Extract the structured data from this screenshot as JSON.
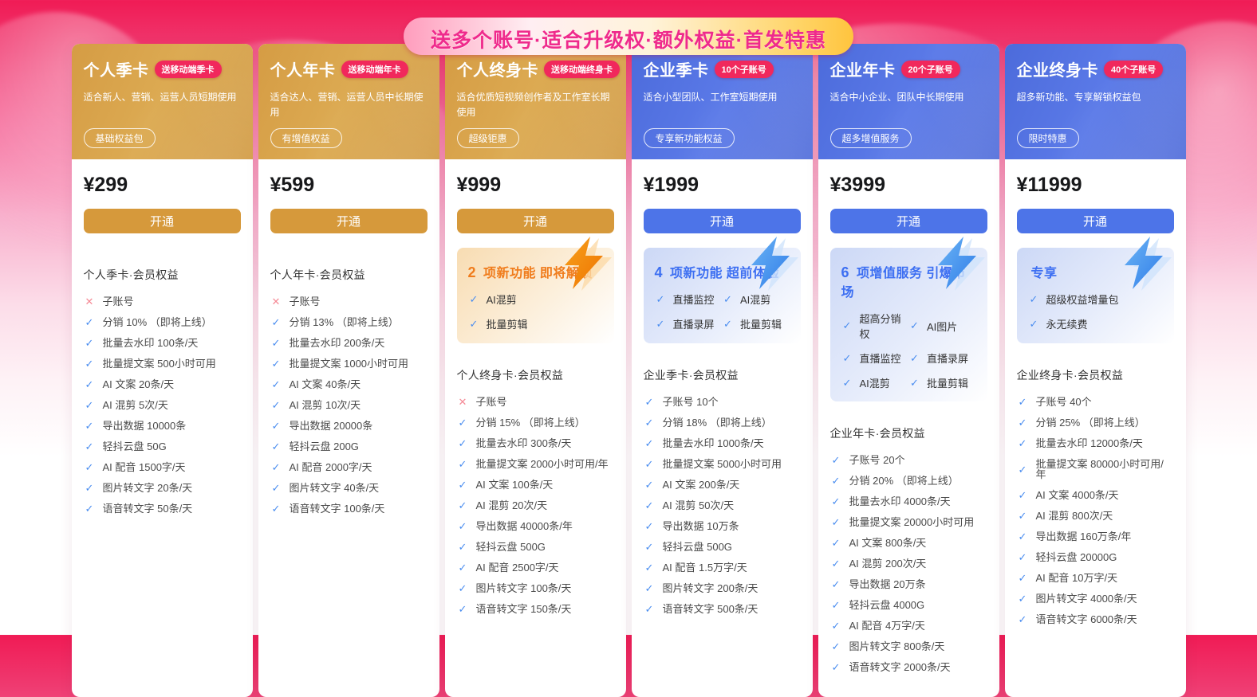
{
  "banner": {
    "text": "送多个账号·适合升级权·额外权益·首发特惠",
    "note": "partially visible, clipped at top of screen"
  },
  "colors": {
    "background_top": "#f01b55",
    "gold_header": "#d7a04b",
    "blue_header": "#4f6edc",
    "badge_red": "#f1285c",
    "gold_button": "#d6993b",
    "blue_button": "#4d74e8",
    "check_blue": "#4a8df0",
    "cross_red": "#f58a96",
    "highlight_orange_title": "#f07c1c",
    "highlight_blue_title": "#3d6ff2"
  },
  "cards": [
    {
      "theme": "gold",
      "title": "个人季卡",
      "badge": "送移动端季卡",
      "desc": "适合新人、营销、运营人员短期使用",
      "tag": "基础权益包",
      "price": "¥299",
      "button": "开通",
      "highlight": null,
      "features_title": "个人季卡·会员权益",
      "features": [
        {
          "ok": false,
          "text": "子账号"
        },
        {
          "ok": true,
          "text": "分销 10% （即将上线）"
        },
        {
          "ok": true,
          "text": "批量去水印 100条/天"
        },
        {
          "ok": true,
          "text": "批量提文案 500小时可用"
        },
        {
          "ok": true,
          "text": "AI 文案 20条/天"
        },
        {
          "ok": true,
          "text": "AI 混剪 5次/天"
        },
        {
          "ok": true,
          "text": "导出数据 10000条"
        },
        {
          "ok": true,
          "text": "轻抖云盘 50G"
        },
        {
          "ok": true,
          "text": "AI 配音 1500字/天"
        },
        {
          "ok": true,
          "text": "图片转文字 20条/天"
        },
        {
          "ok": true,
          "text": "语音转文字 50条/天"
        }
      ]
    },
    {
      "theme": "gold",
      "title": "个人年卡",
      "badge": "送移动端年卡",
      "desc": "适合达人、营销、运营人员中长期使用",
      "tag": "有增值权益",
      "price": "¥599",
      "button": "开通",
      "highlight": null,
      "features_title": "个人年卡·会员权益",
      "features": [
        {
          "ok": false,
          "text": "子账号"
        },
        {
          "ok": true,
          "text": "分销 13% （即将上线）"
        },
        {
          "ok": true,
          "text": "批量去水印 200条/天"
        },
        {
          "ok": true,
          "text": "批量提文案 1000小时可用"
        },
        {
          "ok": true,
          "text": "AI 文案 40条/天"
        },
        {
          "ok": true,
          "text": "AI 混剪 10次/天"
        },
        {
          "ok": true,
          "text": "导出数据 20000条"
        },
        {
          "ok": true,
          "text": "轻抖云盘 200G"
        },
        {
          "ok": true,
          "text": "AI 配音 2000字/天"
        },
        {
          "ok": true,
          "text": "图片转文字 40条/天"
        },
        {
          "ok": true,
          "text": "语音转文字 100条/天"
        }
      ]
    },
    {
      "theme": "gold",
      "title": "个人终身卡",
      "badge": "送移动端终身卡",
      "desc": "适合优质短视频创作者及工作室长期使用",
      "tag": "超级钜惠",
      "price": "¥999",
      "button": "开通",
      "highlight": {
        "theme": "orange",
        "num": "2",
        "title": "项新功能 即将解锁",
        "cols": 1,
        "items": [
          "AI混剪",
          "批量剪辑"
        ]
      },
      "features_title": "个人终身卡·会员权益",
      "features": [
        {
          "ok": false,
          "text": "子账号"
        },
        {
          "ok": true,
          "text": "分销 15% （即将上线）"
        },
        {
          "ok": true,
          "text": "批量去水印 300条/天"
        },
        {
          "ok": true,
          "text": "批量提文案 2000小时可用/年"
        },
        {
          "ok": true,
          "text": "AI 文案 100条/天"
        },
        {
          "ok": true,
          "text": "AI 混剪 20次/天"
        },
        {
          "ok": true,
          "text": "导出数据 40000条/年"
        },
        {
          "ok": true,
          "text": "轻抖云盘 500G"
        },
        {
          "ok": true,
          "text": "AI 配音 2500字/天"
        },
        {
          "ok": true,
          "text": "图片转文字 100条/天"
        },
        {
          "ok": true,
          "text": "语音转文字 150条/天"
        }
      ]
    },
    {
      "theme": "blue",
      "title": "企业季卡",
      "badge": "10个子账号",
      "desc": "适合小型团队、工作室短期使用",
      "tag": "专享新功能权益",
      "price": "¥1999",
      "button": "开通",
      "highlight": {
        "theme": "blue",
        "num": "4",
        "title": "项新功能 超前体验",
        "cols": 2,
        "items": [
          "直播监控",
          "AI混剪",
          "直播录屏",
          "批量剪辑"
        ]
      },
      "features_title": "企业季卡·会员权益",
      "features": [
        {
          "ok": true,
          "text": "子账号 10个"
        },
        {
          "ok": true,
          "text": "分销 18% （即将上线）"
        },
        {
          "ok": true,
          "text": "批量去水印 1000条/天"
        },
        {
          "ok": true,
          "text": "批量提文案 5000小时可用"
        },
        {
          "ok": true,
          "text": "AI 文案 200条/天"
        },
        {
          "ok": true,
          "text": "AI 混剪 50次/天"
        },
        {
          "ok": true,
          "text": "导出数据 10万条"
        },
        {
          "ok": true,
          "text": "轻抖云盘 500G"
        },
        {
          "ok": true,
          "text": "AI 配音 1.5万字/天"
        },
        {
          "ok": true,
          "text": "图片转文字 200条/天"
        },
        {
          "ok": true,
          "text": "语音转文字 500条/天"
        }
      ]
    },
    {
      "theme": "blue",
      "title": "企业年卡",
      "badge": "20个子账号",
      "desc": "适合中小企业、团队中长期使用",
      "tag": "超多增值服务",
      "price": "¥3999",
      "button": "开通",
      "highlight": {
        "theme": "blue",
        "num": "6",
        "title": "项增值服务 引爆市场",
        "cols": 2,
        "items": [
          "超高分销权",
          "AI图片",
          "直播监控",
          "直播录屏",
          "AI混剪",
          "批量剪辑"
        ]
      },
      "features_title": "企业年卡·会员权益",
      "features": [
        {
          "ok": true,
          "text": "子账号 20个"
        },
        {
          "ok": true,
          "text": "分销 20% （即将上线）"
        },
        {
          "ok": true,
          "text": "批量去水印 4000条/天"
        },
        {
          "ok": true,
          "text": "批量提文案 20000小时可用"
        },
        {
          "ok": true,
          "text": "AI 文案 800条/天"
        },
        {
          "ok": true,
          "text": "AI 混剪 200次/天"
        },
        {
          "ok": true,
          "text": "导出数据 20万条"
        },
        {
          "ok": true,
          "text": "轻抖云盘 4000G"
        },
        {
          "ok": true,
          "text": "AI 配音 4万字/天"
        },
        {
          "ok": true,
          "text": "图片转文字 800条/天"
        },
        {
          "ok": true,
          "text": "语音转文字 2000条/天"
        }
      ]
    },
    {
      "theme": "blue",
      "title": "企业终身卡",
      "badge": "40个子账号",
      "desc": "超多新功能、专享解锁权益包",
      "tag": "限时特惠",
      "price": "¥11999",
      "button": "开通",
      "highlight": {
        "theme": "blue",
        "num": "",
        "title": "专享",
        "cols": 1,
        "items": [
          "超级权益增量包",
          "永无续费"
        ]
      },
      "features_title": "企业终身卡·会员权益",
      "features": [
        {
          "ok": true,
          "text": "子账号 40个"
        },
        {
          "ok": true,
          "text": "分销 25% （即将上线）"
        },
        {
          "ok": true,
          "text": "批量去水印 12000条/天"
        },
        {
          "ok": true,
          "text": "批量提文案 80000小时可用/年"
        },
        {
          "ok": true,
          "text": "AI 文案 4000条/天"
        },
        {
          "ok": true,
          "text": "AI 混剪 800次/天"
        },
        {
          "ok": true,
          "text": "导出数据 160万条/年"
        },
        {
          "ok": true,
          "text": "轻抖云盘 20000G"
        },
        {
          "ok": true,
          "text": "AI 配音 10万字/天"
        },
        {
          "ok": true,
          "text": "图片转文字 4000条/天"
        },
        {
          "ok": true,
          "text": "语音转文字 6000条/天"
        }
      ]
    }
  ]
}
